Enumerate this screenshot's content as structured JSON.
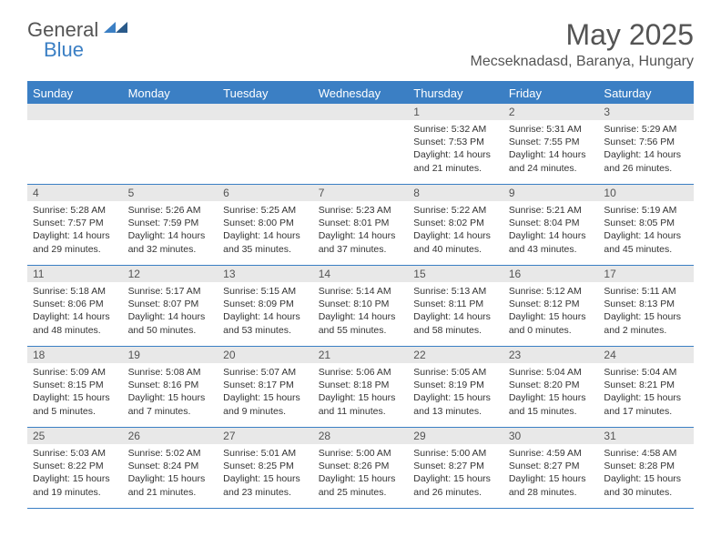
{
  "brand": {
    "part1": "General",
    "part2": "Blue"
  },
  "title": "May 2025",
  "location": "Mecseknadasd, Baranya, Hungary",
  "colors": {
    "header_blue": "#3b7fc4",
    "daynum_bg": "#e8e8e8",
    "text": "#333333",
    "title_text": "#545454"
  },
  "weekdays": [
    "Sunday",
    "Monday",
    "Tuesday",
    "Wednesday",
    "Thursday",
    "Friday",
    "Saturday"
  ],
  "weeks": [
    [
      null,
      null,
      null,
      null,
      {
        "n": "1",
        "sr": "5:32 AM",
        "ss": "7:53 PM",
        "dl": "14 hours and 21 minutes."
      },
      {
        "n": "2",
        "sr": "5:31 AM",
        "ss": "7:55 PM",
        "dl": "14 hours and 24 minutes."
      },
      {
        "n": "3",
        "sr": "5:29 AM",
        "ss": "7:56 PM",
        "dl": "14 hours and 26 minutes."
      }
    ],
    [
      {
        "n": "4",
        "sr": "5:28 AM",
        "ss": "7:57 PM",
        "dl": "14 hours and 29 minutes."
      },
      {
        "n": "5",
        "sr": "5:26 AM",
        "ss": "7:59 PM",
        "dl": "14 hours and 32 minutes."
      },
      {
        "n": "6",
        "sr": "5:25 AM",
        "ss": "8:00 PM",
        "dl": "14 hours and 35 minutes."
      },
      {
        "n": "7",
        "sr": "5:23 AM",
        "ss": "8:01 PM",
        "dl": "14 hours and 37 minutes."
      },
      {
        "n": "8",
        "sr": "5:22 AM",
        "ss": "8:02 PM",
        "dl": "14 hours and 40 minutes."
      },
      {
        "n": "9",
        "sr": "5:21 AM",
        "ss": "8:04 PM",
        "dl": "14 hours and 43 minutes."
      },
      {
        "n": "10",
        "sr": "5:19 AM",
        "ss": "8:05 PM",
        "dl": "14 hours and 45 minutes."
      }
    ],
    [
      {
        "n": "11",
        "sr": "5:18 AM",
        "ss": "8:06 PM",
        "dl": "14 hours and 48 minutes."
      },
      {
        "n": "12",
        "sr": "5:17 AM",
        "ss": "8:07 PM",
        "dl": "14 hours and 50 minutes."
      },
      {
        "n": "13",
        "sr": "5:15 AM",
        "ss": "8:09 PM",
        "dl": "14 hours and 53 minutes."
      },
      {
        "n": "14",
        "sr": "5:14 AM",
        "ss": "8:10 PM",
        "dl": "14 hours and 55 minutes."
      },
      {
        "n": "15",
        "sr": "5:13 AM",
        "ss": "8:11 PM",
        "dl": "14 hours and 58 minutes."
      },
      {
        "n": "16",
        "sr": "5:12 AM",
        "ss": "8:12 PM",
        "dl": "15 hours and 0 minutes."
      },
      {
        "n": "17",
        "sr": "5:11 AM",
        "ss": "8:13 PM",
        "dl": "15 hours and 2 minutes."
      }
    ],
    [
      {
        "n": "18",
        "sr": "5:09 AM",
        "ss": "8:15 PM",
        "dl": "15 hours and 5 minutes."
      },
      {
        "n": "19",
        "sr": "5:08 AM",
        "ss": "8:16 PM",
        "dl": "15 hours and 7 minutes."
      },
      {
        "n": "20",
        "sr": "5:07 AM",
        "ss": "8:17 PM",
        "dl": "15 hours and 9 minutes."
      },
      {
        "n": "21",
        "sr": "5:06 AM",
        "ss": "8:18 PM",
        "dl": "15 hours and 11 minutes."
      },
      {
        "n": "22",
        "sr": "5:05 AM",
        "ss": "8:19 PM",
        "dl": "15 hours and 13 minutes."
      },
      {
        "n": "23",
        "sr": "5:04 AM",
        "ss": "8:20 PM",
        "dl": "15 hours and 15 minutes."
      },
      {
        "n": "24",
        "sr": "5:04 AM",
        "ss": "8:21 PM",
        "dl": "15 hours and 17 minutes."
      }
    ],
    [
      {
        "n": "25",
        "sr": "5:03 AM",
        "ss": "8:22 PM",
        "dl": "15 hours and 19 minutes."
      },
      {
        "n": "26",
        "sr": "5:02 AM",
        "ss": "8:24 PM",
        "dl": "15 hours and 21 minutes."
      },
      {
        "n": "27",
        "sr": "5:01 AM",
        "ss": "8:25 PM",
        "dl": "15 hours and 23 minutes."
      },
      {
        "n": "28",
        "sr": "5:00 AM",
        "ss": "8:26 PM",
        "dl": "15 hours and 25 minutes."
      },
      {
        "n": "29",
        "sr": "5:00 AM",
        "ss": "8:27 PM",
        "dl": "15 hours and 26 minutes."
      },
      {
        "n": "30",
        "sr": "4:59 AM",
        "ss": "8:27 PM",
        "dl": "15 hours and 28 minutes."
      },
      {
        "n": "31",
        "sr": "4:58 AM",
        "ss": "8:28 PM",
        "dl": "15 hours and 30 minutes."
      }
    ]
  ],
  "labels": {
    "sunrise": "Sunrise: ",
    "sunset": "Sunset: ",
    "daylight": "Daylight: "
  }
}
